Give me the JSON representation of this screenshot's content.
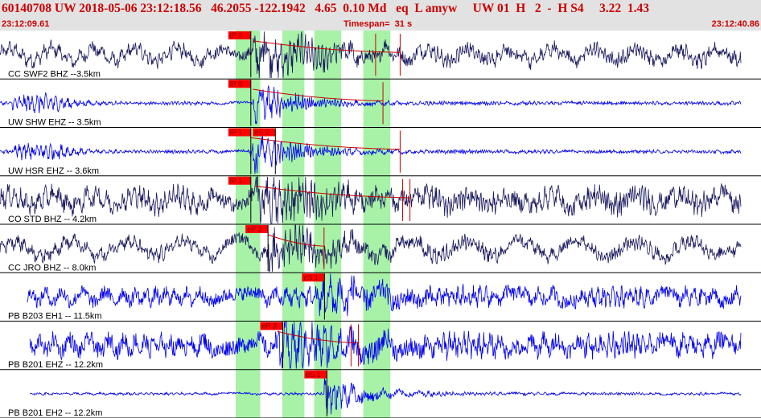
{
  "header": {
    "line": "60140708 UW 2018-05-06 23:12:18.56   46.2055 -122.1942   4.65  0.10 Md   eq  L amyw     UW 01  H   2  -  H S4     3.22  1.43",
    "start_time": "23:12:09.61",
    "timespan": "Timespan=  31 s",
    "end_time": "23:12:40.86"
  },
  "colors": {
    "accent": "#cc0000",
    "trace_dark": "#1a1a5e",
    "trace_blue": "#0000ee",
    "pick_box": "#ff0000",
    "window": "#90ee90"
  },
  "chart_data": {
    "type": "waveform",
    "x_unit": "s",
    "xlim": [
      0,
      31
    ],
    "windows_s": [
      [
        9.6,
        10.6
      ],
      [
        11.5,
        12.4
      ],
      [
        12.8,
        13.9
      ],
      [
        14.8,
        15.9
      ]
    ],
    "traces": [
      {
        "label": "CC SWF2 BHZ --3.5km",
        "color": "dark",
        "start": 0.0,
        "freq": 3.2,
        "amp": 0.35,
        "onset": 10.3,
        "peak": 0.95,
        "decay": 2.2,
        "wobble": 0.25,
        "picks": [
          {
            "text": "iP 0",
            "t": 9.3
          }
        ],
        "marks": [
          15.3,
          16.3
        ]
      },
      {
        "label": "UW SHW EHZ -- 3.5km",
        "color": "blue",
        "start": 0.0,
        "freq": 5.0,
        "amp": 0.08,
        "onset": 10.3,
        "peak": 0.95,
        "decay": 1.6,
        "wobble": 0.0,
        "earlyburst": true,
        "picks": [
          {
            "text": "iP 0",
            "t": 9.3
          }
        ],
        "marks": [
          15.6
        ]
      },
      {
        "label": "UW HSR EHZ -- 3.6km",
        "color": "blue",
        "start": 0.0,
        "freq": 5.0,
        "amp": 0.08,
        "onset": 10.2,
        "peak": 0.95,
        "decay": 1.7,
        "wobble": 0.0,
        "earlyburst": true,
        "picks": [
          {
            "text": "iP 1",
            "t": 9.3
          },
          {
            "text": "eS 2",
            "t": 10.3
          }
        ],
        "marks": [
          16.3
        ]
      },
      {
        "label": "CO STD BHZ -- 4.2km",
        "color": "dark",
        "start": 0.0,
        "freq": 3.6,
        "amp": 0.5,
        "onset": 10.4,
        "peak": 0.95,
        "decay": 2.0,
        "wobble": 0.2,
        "picks": [
          {
            "text": "iP 1",
            "t": 9.3
          }
        ],
        "marks": [
          16.4,
          16.7
        ]
      },
      {
        "label": "CC JRO BHZ -- 8.0km",
        "color": "dark",
        "start": 0.0,
        "freq": 3.0,
        "amp": 0.35,
        "onset": 10.9,
        "peak": 0.8,
        "decay": 2.4,
        "wobble": 0.3,
        "picks": [
          {
            "text": "eP 2",
            "t": 10.0
          }
        ],
        "marks": [
          13.2
        ]
      },
      {
        "label": "PB B203 EH1 -- 11.5km",
        "color": "blue",
        "start": 1.1,
        "freq": 1.6,
        "amp": 0.45,
        "onset": 13.0,
        "peak": 0.85,
        "decay": 2.0,
        "wobble": 0.0,
        "picks": [
          {
            "text": "eS 1",
            "t": 12.3
          }
        ],
        "marks": []
      },
      {
        "label": "PB B201 EHZ -- 12.2km",
        "color": "blue",
        "start": 1.2,
        "freq": 1.8,
        "amp": 0.55,
        "onset": 11.3,
        "peak": 0.95,
        "decay": 2.2,
        "wobble": 0.0,
        "picks": [
          {
            "text": "eP 3",
            "t": 10.6
          }
        ],
        "marks": [
          14.3,
          14.6
        ]
      },
      {
        "label": "PB B201 EH2 -- 12.2km",
        "color": "blue",
        "start": 1.2,
        "freq": 3.0,
        "amp": 0.06,
        "onset": 13.2,
        "peak": 0.9,
        "decay": 1.6,
        "wobble": 0.0,
        "picks": [
          {
            "text": "eS 1",
            "t": 12.4
          }
        ],
        "marks": []
      }
    ]
  }
}
